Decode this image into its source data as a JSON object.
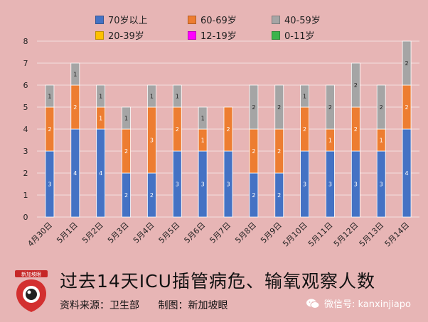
{
  "chart_data": {
    "type": "bar",
    "stacked": true,
    "categories": [
      "4月30日",
      "5月1日",
      "5月2日",
      "5月3日",
      "5月4日",
      "5月5日",
      "5月6日",
      "5月7日",
      "5月8日",
      "5月9日",
      "5月10日",
      "5月11日",
      "5月12日",
      "5月13日",
      "5月14日"
    ],
    "series": [
      {
        "name": "70岁以上",
        "color": "#4472c4",
        "values": [
          3,
          4,
          4,
          2,
          2,
          3,
          3,
          3,
          2,
          2,
          3,
          3,
          3,
          3,
          4
        ]
      },
      {
        "name": "60-69岁",
        "color": "#ed7d31",
        "values": [
          2,
          2,
          1,
          2,
          3,
          2,
          1,
          2,
          2,
          2,
          2,
          1,
          2,
          1,
          2
        ]
      },
      {
        "name": "40-59岁",
        "color": "#a5a5a5",
        "values": [
          1,
          1,
          1,
          1,
          1,
          1,
          1,
          0,
          2,
          2,
          1,
          2,
          2,
          2,
          2
        ]
      },
      {
        "name": "20-39岁",
        "color": "#ffc000",
        "values": [
          0,
          0,
          0,
          0,
          0,
          0,
          0,
          0,
          0,
          0,
          0,
          0,
          0,
          0,
          0
        ]
      },
      {
        "name": "12-19岁",
        "color": "#ff00ff",
        "values": [
          0,
          0,
          0,
          0,
          0,
          0,
          0,
          0,
          0,
          0,
          0,
          0,
          0,
          0,
          0
        ]
      },
      {
        "name": "0-11岁",
        "color": "#3cb44b",
        "values": [
          0,
          0,
          0,
          0,
          0,
          0,
          0,
          0,
          0,
          0,
          0,
          0,
          0,
          0,
          0
        ]
      }
    ],
    "ylim": [
      0,
      8
    ],
    "yticks": [
      0,
      1,
      2,
      3,
      4,
      5,
      6,
      7,
      8
    ],
    "grid": true,
    "legend_position": "top",
    "title": "过去14天ICU插管病危、输氧观察人数"
  },
  "footer": {
    "source": "资料来源：卫生部",
    "credit": "制图：新加坡眼",
    "wechat": "微信号: kanxinjiapo",
    "logo_text": "新加坡眼"
  }
}
